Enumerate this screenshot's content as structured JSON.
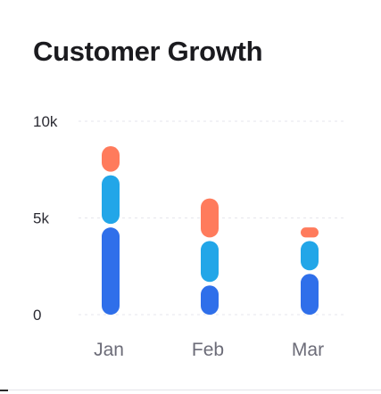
{
  "header": {
    "title": "Customer Growth"
  },
  "chart_data": {
    "type": "bar",
    "stacked": true,
    "categories": [
      "Jan",
      "Feb",
      "Mar"
    ],
    "series": [
      {
        "name": "",
        "color": "#2f6fea",
        "values": [
          4600,
          1600,
          2200
        ]
      },
      {
        "name": "",
        "color": "#22a6e8",
        "values": [
          2700,
          2300,
          1700
        ]
      },
      {
        "name": "",
        "color": "#ff7b5c",
        "values": [
          1500,
          2200,
          700
        ]
      }
    ],
    "segment_order_bottom_to_top": [
      0,
      1,
      2
    ],
    "ylim": [
      0,
      10000
    ],
    "yticks": [
      {
        "value": 0,
        "label": "0"
      },
      {
        "value": 5000,
        "label": "5k"
      },
      {
        "value": 10000,
        "label": "10k"
      }
    ],
    "grid": true,
    "title": "Customer Growth",
    "xlabel": "",
    "ylabel": "",
    "legend": "none"
  }
}
